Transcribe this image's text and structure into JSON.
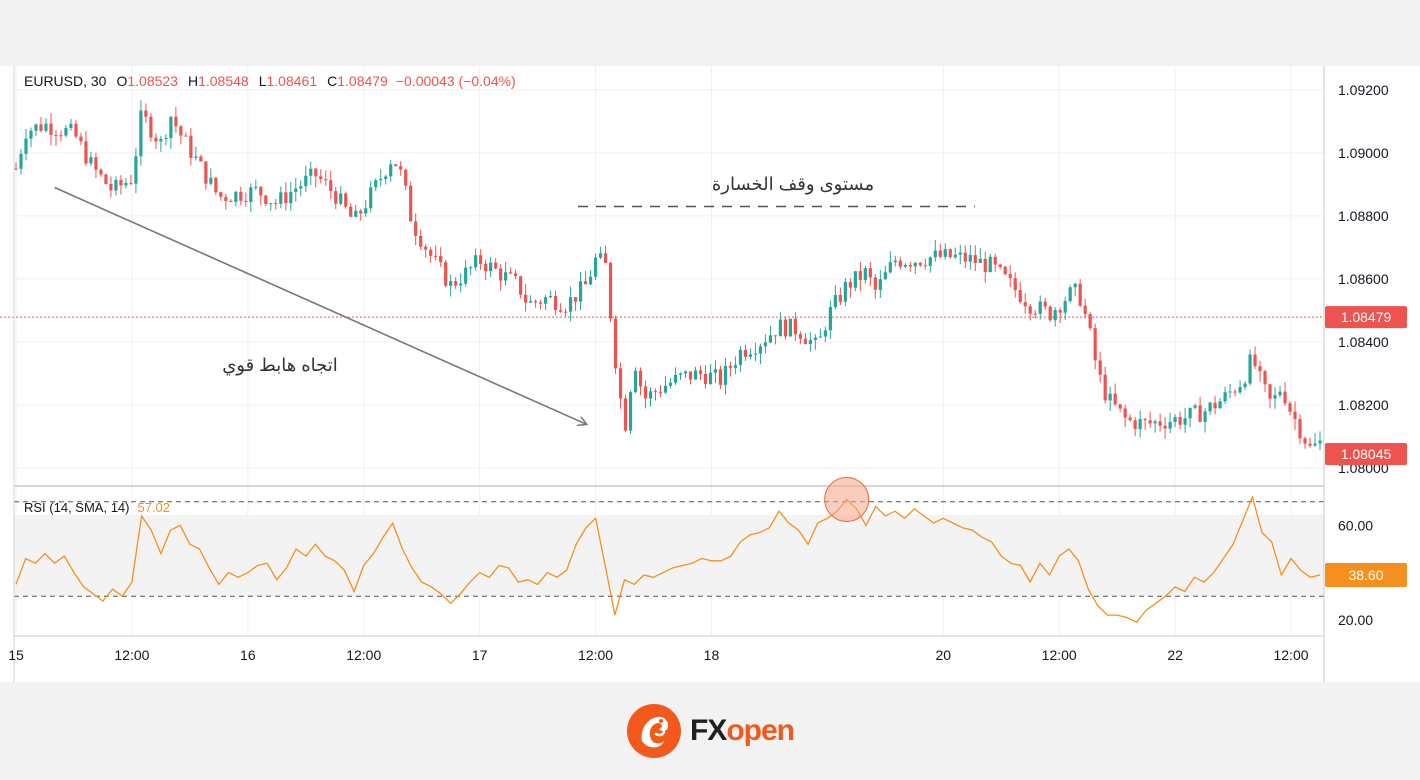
{
  "header": {
    "symbol": "EURUSD, 30",
    "o_label": "O",
    "o_value": "1.08523",
    "h_label": "H",
    "h_value": "1.08548",
    "l_label": "L",
    "l_value": "1.08461",
    "c_label": "C",
    "c_value": "1.08479",
    "change": "−0.00043 (−0.04%)"
  },
  "annotations": {
    "trend_label": "اتجاه هابط قوي",
    "stop_label": "مستوى وقف الخسارة"
  },
  "colors": {
    "bull": "#26a69a",
    "bear": "#ef5350",
    "rsi_line": "#f5901e",
    "price_tag": "#ef5350",
    "brand": "#f25a1d"
  },
  "brand": {
    "name": "FXopen",
    "prefix": "FX",
    "suffix": "open"
  },
  "chart_data": [
    {
      "type": "candlestick",
      "symbol": "EURUSD",
      "timeframe": "30",
      "ylim": [
        1.0795,
        1.0925
      ],
      "y_ticks": [
        "1.09200",
        "1.09000",
        "1.08800",
        "1.08600",
        "1.08400",
        "1.08200",
        "1.08000"
      ],
      "y_tick_values": [
        1.092,
        1.09,
        1.088,
        1.086,
        1.084,
        1.082,
        1.08
      ],
      "x_ticks": [
        "15",
        "12:00",
        "16",
        "12:00",
        "17",
        "12:00",
        "18",
        "20",
        "12:00",
        "22",
        "12:00"
      ],
      "x_tick_times": [
        0,
        12,
        24,
        36,
        48,
        60,
        72,
        96,
        108,
        120,
        132
      ],
      "price_tags": [
        {
          "label": "1.08479",
          "value": 1.08479
        },
        {
          "label": "1.08045",
          "value": 1.08045
        }
      ],
      "stop_loss_level": 1.0883,
      "trend_line": {
        "from": {
          "t": 4,
          "price": 1.0889
        },
        "to": {
          "t": 59,
          "price": 1.0814
        }
      },
      "close_path": [
        {
          "t": 0,
          "price": 1.0895
        },
        {
          "t": 1,
          "price": 1.0907
        },
        {
          "t": 3,
          "price": 1.0909
        },
        {
          "t": 6,
          "price": 1.0906
        },
        {
          "t": 8,
          "price": 1.0895
        },
        {
          "t": 10,
          "price": 1.0888
        },
        {
          "t": 12,
          "price": 1.0892
        },
        {
          "t": 13,
          "price": 1.0912
        },
        {
          "t": 15,
          "price": 1.0903
        },
        {
          "t": 16,
          "price": 1.0912
        },
        {
          "t": 17,
          "price": 1.0906
        },
        {
          "t": 19,
          "price": 1.0896
        },
        {
          "t": 21,
          "price": 1.0886
        },
        {
          "t": 23,
          "price": 1.0887
        },
        {
          "t": 25,
          "price": 1.0888
        },
        {
          "t": 27,
          "price": 1.0884
        },
        {
          "t": 29,
          "price": 1.0889
        },
        {
          "t": 31,
          "price": 1.0893
        },
        {
          "t": 33,
          "price": 1.0887
        },
        {
          "t": 35,
          "price": 1.0878
        },
        {
          "t": 37,
          "price": 1.0888
        },
        {
          "t": 39,
          "price": 1.0899
        },
        {
          "t": 40,
          "price": 1.0892
        },
        {
          "t": 41,
          "price": 1.0878
        },
        {
          "t": 43,
          "price": 1.0867
        },
        {
          "t": 45,
          "price": 1.0858
        },
        {
          "t": 47,
          "price": 1.0863
        },
        {
          "t": 48,
          "price": 1.0866
        },
        {
          "t": 50,
          "price": 1.0862
        },
        {
          "t": 52,
          "price": 1.0858
        },
        {
          "t": 53,
          "price": 1.0852
        },
        {
          "t": 55,
          "price": 1.0854
        },
        {
          "t": 57,
          "price": 1.0852
        },
        {
          "t": 59,
          "price": 1.0858
        },
        {
          "t": 60,
          "price": 1.0866
        },
        {
          "t": 61,
          "price": 1.0865
        },
        {
          "t": 62,
          "price": 1.0836
        },
        {
          "t": 63,
          "price": 1.0812
        },
        {
          "t": 64,
          "price": 1.0835
        },
        {
          "t": 65,
          "price": 1.0822
        },
        {
          "t": 67,
          "price": 1.0826
        },
        {
          "t": 69,
          "price": 1.0829
        },
        {
          "t": 71,
          "price": 1.083
        },
        {
          "t": 73,
          "price": 1.0828
        },
        {
          "t": 75,
          "price": 1.0837
        },
        {
          "t": 77,
          "price": 1.084
        },
        {
          "t": 79,
          "price": 1.0845
        },
        {
          "t": 81,
          "price": 1.0844
        },
        {
          "t": 83,
          "price": 1.0838
        },
        {
          "t": 84,
          "price": 1.0848
        },
        {
          "t": 86,
          "price": 1.0858
        },
        {
          "t": 88,
          "price": 1.0862
        },
        {
          "t": 89,
          "price": 1.0856
        },
        {
          "t": 91,
          "price": 1.0866
        },
        {
          "t": 93,
          "price": 1.0866
        },
        {
          "t": 95,
          "price": 1.0867
        },
        {
          "t": 97,
          "price": 1.0867
        },
        {
          "t": 99,
          "price": 1.0866
        },
        {
          "t": 101,
          "price": 1.0864
        },
        {
          "t": 103,
          "price": 1.0858
        },
        {
          "t": 105,
          "price": 1.0852
        },
        {
          "t": 107,
          "price": 1.0849
        },
        {
          "t": 109,
          "price": 1.0855
        },
        {
          "t": 110,
          "price": 1.0856
        },
        {
          "t": 111,
          "price": 1.0845
        },
        {
          "t": 112,
          "price": 1.083
        },
        {
          "t": 113,
          "price": 1.0822
        },
        {
          "t": 115,
          "price": 1.0815
        },
        {
          "t": 117,
          "price": 1.0814
        },
        {
          "t": 119,
          "price": 1.0815
        },
        {
          "t": 121,
          "price": 1.0816
        },
        {
          "t": 123,
          "price": 1.0818
        },
        {
          "t": 125,
          "price": 1.0822
        },
        {
          "t": 127,
          "price": 1.0828
        },
        {
          "t": 128,
          "price": 1.0835
        },
        {
          "t": 129,
          "price": 1.0826
        },
        {
          "t": 130,
          "price": 1.082
        },
        {
          "t": 131,
          "price": 1.0826
        },
        {
          "t": 132,
          "price": 1.0818
        },
        {
          "t": 133,
          "price": 1.0812
        },
        {
          "t": 134,
          "price": 1.0806
        },
        {
          "t": 135,
          "price": 1.0808
        }
      ]
    },
    {
      "type": "line",
      "indicator": "RSI",
      "legend_label": "RSI (14, SMA, 14)",
      "legend_value": "57.02",
      "last_value_label": "38.60",
      "ylim": [
        14,
        75
      ],
      "y_ticks": [
        "60.00",
        "20.00"
      ],
      "y_tick_values": [
        60,
        20
      ],
      "bands": [
        70,
        30
      ],
      "highlight": {
        "t": 86,
        "value": 71
      },
      "series": [
        {
          "t": 0,
          "v": 35
        },
        {
          "t": 1,
          "v": 46
        },
        {
          "t": 2,
          "v": 44
        },
        {
          "t": 3,
          "v": 48
        },
        {
          "t": 4,
          "v": 44
        },
        {
          "t": 5,
          "v": 47
        },
        {
          "t": 6,
          "v": 40
        },
        {
          "t": 7,
          "v": 34
        },
        {
          "t": 8,
          "v": 31
        },
        {
          "t": 9,
          "v": 28
        },
        {
          "t": 10,
          "v": 33
        },
        {
          "t": 11,
          "v": 30
        },
        {
          "t": 12,
          "v": 36
        },
        {
          "t": 13,
          "v": 64
        },
        {
          "t": 14,
          "v": 58
        },
        {
          "t": 15,
          "v": 48
        },
        {
          "t": 16,
          "v": 58
        },
        {
          "t": 17,
          "v": 60
        },
        {
          "t": 18,
          "v": 52
        },
        {
          "t": 19,
          "v": 50
        },
        {
          "t": 20,
          "v": 42
        },
        {
          "t": 21,
          "v": 35
        },
        {
          "t": 22,
          "v": 40
        },
        {
          "t": 23,
          "v": 38
        },
        {
          "t": 24,
          "v": 40
        },
        {
          "t": 25,
          "v": 43
        },
        {
          "t": 26,
          "v": 44
        },
        {
          "t": 27,
          "v": 37
        },
        {
          "t": 28,
          "v": 42
        },
        {
          "t": 29,
          "v": 50
        },
        {
          "t": 30,
          "v": 47
        },
        {
          "t": 31,
          "v": 52
        },
        {
          "t": 32,
          "v": 47
        },
        {
          "t": 33,
          "v": 45
        },
        {
          "t": 34,
          "v": 41
        },
        {
          "t": 35,
          "v": 32
        },
        {
          "t": 36,
          "v": 43
        },
        {
          "t": 37,
          "v": 48
        },
        {
          "t": 38,
          "v": 55
        },
        {
          "t": 39,
          "v": 61
        },
        {
          "t": 40,
          "v": 50
        },
        {
          "t": 41,
          "v": 42
        },
        {
          "t": 42,
          "v": 36
        },
        {
          "t": 43,
          "v": 34
        },
        {
          "t": 44,
          "v": 31
        },
        {
          "t": 45,
          "v": 27
        },
        {
          "t": 46,
          "v": 31
        },
        {
          "t": 47,
          "v": 36
        },
        {
          "t": 48,
          "v": 40
        },
        {
          "t": 49,
          "v": 38
        },
        {
          "t": 50,
          "v": 43
        },
        {
          "t": 51,
          "v": 42
        },
        {
          "t": 52,
          "v": 36
        },
        {
          "t": 53,
          "v": 37
        },
        {
          "t": 54,
          "v": 35
        },
        {
          "t": 55,
          "v": 40
        },
        {
          "t": 56,
          "v": 38
        },
        {
          "t": 57,
          "v": 41
        },
        {
          "t": 58,
          "v": 52
        },
        {
          "t": 59,
          "v": 59
        },
        {
          "t": 60,
          "v": 63
        },
        {
          "t": 61,
          "v": 43
        },
        {
          "t": 62,
          "v": 22
        },
        {
          "t": 63,
          "v": 37
        },
        {
          "t": 64,
          "v": 35
        },
        {
          "t": 65,
          "v": 39
        },
        {
          "t": 66,
          "v": 38
        },
        {
          "t": 67,
          "v": 40
        },
        {
          "t": 68,
          "v": 42
        },
        {
          "t": 69,
          "v": 43
        },
        {
          "t": 70,
          "v": 44
        },
        {
          "t": 71,
          "v": 46
        },
        {
          "t": 72,
          "v": 45
        },
        {
          "t": 73,
          "v": 45
        },
        {
          "t": 74,
          "v": 47
        },
        {
          "t": 75,
          "v": 53
        },
        {
          "t": 76,
          "v": 56
        },
        {
          "t": 77,
          "v": 57
        },
        {
          "t": 78,
          "v": 59
        },
        {
          "t": 79,
          "v": 66
        },
        {
          "t": 80,
          "v": 61
        },
        {
          "t": 81,
          "v": 58
        },
        {
          "t": 82,
          "v": 52
        },
        {
          "t": 83,
          "v": 61
        },
        {
          "t": 84,
          "v": 63
        },
        {
          "t": 85,
          "v": 66
        },
        {
          "t": 86,
          "v": 71
        },
        {
          "t": 87,
          "v": 67
        },
        {
          "t": 88,
          "v": 60
        },
        {
          "t": 89,
          "v": 68
        },
        {
          "t": 90,
          "v": 64
        },
        {
          "t": 91,
          "v": 66
        },
        {
          "t": 92,
          "v": 63
        },
        {
          "t": 93,
          "v": 67
        },
        {
          "t": 94,
          "v": 64
        },
        {
          "t": 95,
          "v": 61
        },
        {
          "t": 96,
          "v": 63
        },
        {
          "t": 97,
          "v": 61
        },
        {
          "t": 98,
          "v": 59
        },
        {
          "t": 99,
          "v": 58
        },
        {
          "t": 100,
          "v": 55
        },
        {
          "t": 101,
          "v": 53
        },
        {
          "t": 102,
          "v": 47
        },
        {
          "t": 103,
          "v": 44
        },
        {
          "t": 104,
          "v": 43
        },
        {
          "t": 105,
          "v": 36
        },
        {
          "t": 106,
          "v": 44
        },
        {
          "t": 107,
          "v": 39
        },
        {
          "t": 108,
          "v": 47
        },
        {
          "t": 109,
          "v": 50
        },
        {
          "t": 110,
          "v": 45
        },
        {
          "t": 111,
          "v": 33
        },
        {
          "t": 112,
          "v": 26
        },
        {
          "t": 113,
          "v": 22
        },
        {
          "t": 114,
          "v": 22
        },
        {
          "t": 115,
          "v": 21
        },
        {
          "t": 116,
          "v": 19
        },
        {
          "t": 117,
          "v": 24
        },
        {
          "t": 118,
          "v": 27
        },
        {
          "t": 119,
          "v": 30
        },
        {
          "t": 120,
          "v": 34
        },
        {
          "t": 121,
          "v": 32
        },
        {
          "t": 122,
          "v": 38
        },
        {
          "t": 123,
          "v": 36
        },
        {
          "t": 124,
          "v": 40
        },
        {
          "t": 125,
          "v": 46
        },
        {
          "t": 126,
          "v": 52
        },
        {
          "t": 127,
          "v": 62
        },
        {
          "t": 128,
          "v": 72
        },
        {
          "t": 129,
          "v": 57
        },
        {
          "t": 130,
          "v": 53
        },
        {
          "t": 131,
          "v": 39
        },
        {
          "t": 132,
          "v": 46
        },
        {
          "t": 133,
          "v": 41
        },
        {
          "t": 134,
          "v": 38
        },
        {
          "t": 135,
          "v": 39
        }
      ]
    }
  ]
}
